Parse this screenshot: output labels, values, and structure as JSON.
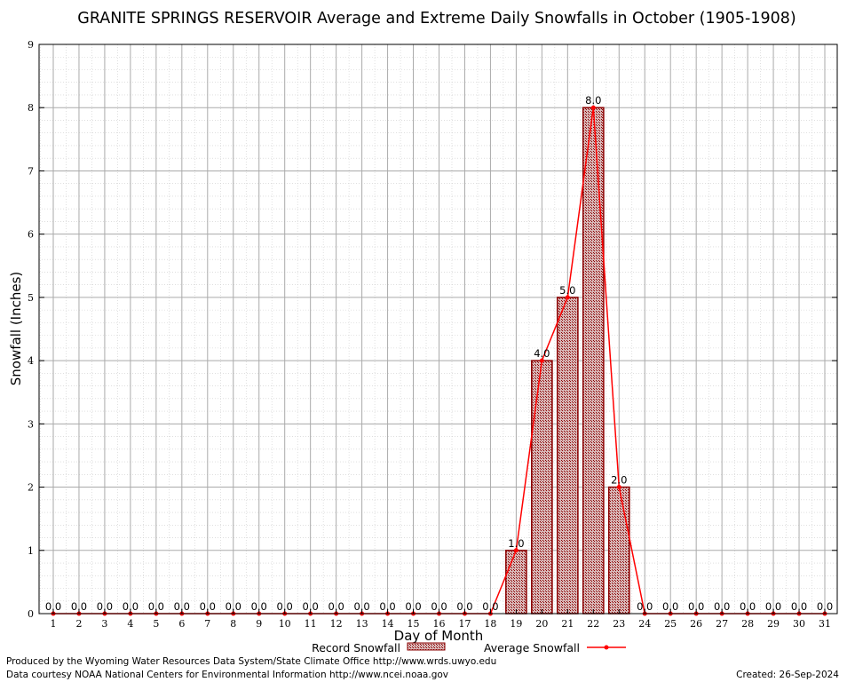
{
  "chart_data": {
    "type": "bar",
    "title": "GRANITE SPRINGS RESERVOIR Average and Extreme Daily Snowfalls in October (1905-1908)",
    "xlabel": "Day of Month",
    "ylabel": "Snowfall (Inches)",
    "ylim": [
      0,
      9
    ],
    "yticks": [
      0,
      1,
      2,
      3,
      4,
      5,
      6,
      7,
      8,
      9
    ],
    "categories": [
      "1",
      "2",
      "3",
      "4",
      "5",
      "6",
      "7",
      "8",
      "9",
      "10",
      "11",
      "12",
      "13",
      "14",
      "15",
      "16",
      "17",
      "18",
      "19",
      "20",
      "21",
      "22",
      "23",
      "24",
      "25",
      "26",
      "27",
      "28",
      "29",
      "30",
      "31"
    ],
    "series": [
      {
        "name": "Record Snowfall",
        "kind": "bar",
        "values": [
          0,
          0,
          0,
          0,
          0,
          0,
          0,
          0,
          0,
          0,
          0,
          0,
          0,
          0,
          0,
          0,
          0,
          0,
          1.0,
          4.0,
          5.0,
          8.0,
          2.0,
          0,
          0,
          0,
          0,
          0,
          0,
          0,
          0
        ]
      },
      {
        "name": "Average Snowfall",
        "kind": "line",
        "values": [
          0,
          0,
          0,
          0,
          0,
          0,
          0,
          0,
          0,
          0,
          0,
          0,
          0,
          0,
          0,
          0,
          0,
          0,
          1.0,
          4.0,
          5.0,
          8.0,
          2.0,
          0,
          0,
          0,
          0,
          0,
          0,
          0,
          0
        ]
      }
    ],
    "data_labels": [
      "0.0",
      "0.0",
      "0.0",
      "0.0",
      "0.0",
      "0.0",
      "0.0",
      "0.0",
      "0.0",
      "0.0",
      "0.0",
      "0.0",
      "0.0",
      "0.0",
      "0.0",
      "0.0",
      "0.0",
      "0.0",
      "1.0",
      "4.0",
      "5.0",
      "8.0",
      "2.0",
      "0.0",
      "0.0",
      "0.0",
      "0.0",
      "0.0",
      "0.0",
      "0.0",
      "0.0"
    ],
    "grid": true,
    "legend_placement": "bottom",
    "colors": {
      "bar_fill": "#b08080",
      "bar_stroke": "#8b0000",
      "line": "#ff0000",
      "grid_major": "#aaaaaa",
      "grid_minor": "#cccccc"
    }
  },
  "footer": {
    "produced_by": "Produced by the Wyoming Water Resources Data System/State Climate Office http://www.wrds.uwyo.edu",
    "courtesy": "Data courtesy NOAA National Centers for Environmental Information http://www.ncei.noaa.gov",
    "created": "Created:  26-Sep-2024"
  }
}
